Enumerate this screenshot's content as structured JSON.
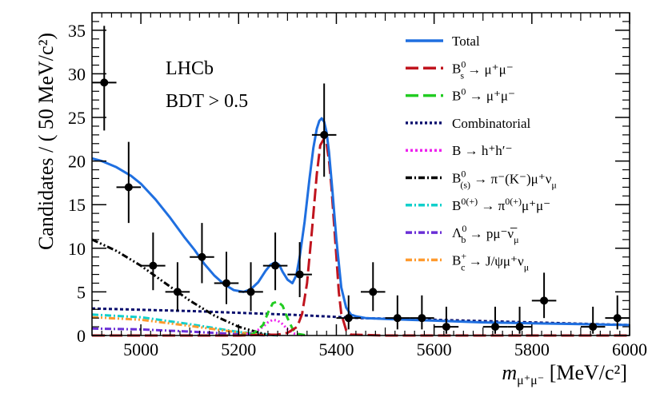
{
  "chart_data": {
    "type": "scatter",
    "title": "",
    "xlabel": "m_{μ⁺μ⁻} [MeV/c²]",
    "xlabel_main": "m",
    "xlabel_sub": "μ⁺μ⁻",
    "xlabel_unit": " [MeV/c²]",
    "ylabel": "Candidates / ( 50 MeV/c²)",
    "xlim": [
      4900,
      6000
    ],
    "ylim": [
      0,
      37
    ],
    "xticks": [
      5000,
      5200,
      5400,
      5600,
      5800,
      6000
    ],
    "yticks": [
      0,
      5,
      10,
      15,
      20,
      25,
      30,
      35
    ],
    "annotations": [
      "LHCb",
      "BDT > 0.5"
    ],
    "data_points": [
      {
        "x": 4925,
        "y": 29,
        "ylo": 23.5,
        "yhi": 35.5
      },
      {
        "x": 4975,
        "y": 17,
        "ylo": 12.9,
        "yhi": 22.2
      },
      {
        "x": 5025,
        "y": 8,
        "ylo": 5.2,
        "yhi": 11.8
      },
      {
        "x": 5075,
        "y": 5,
        "ylo": 2.8,
        "yhi": 8.4
      },
      {
        "x": 5125,
        "y": 9,
        "ylo": 6.0,
        "yhi": 12.9
      },
      {
        "x": 5175,
        "y": 6,
        "ylo": 3.6,
        "yhi": 9.6
      },
      {
        "x": 5225,
        "y": 5,
        "ylo": 2.8,
        "yhi": 8.4
      },
      {
        "x": 5275,
        "y": 8,
        "ylo": 5.2,
        "yhi": 11.8
      },
      {
        "x": 5325,
        "y": 7,
        "ylo": 4.4,
        "yhi": 10.7
      },
      {
        "x": 5375,
        "y": 23,
        "ylo": 18.2,
        "yhi": 28.9
      },
      {
        "x": 5425,
        "y": 2,
        "ylo": 0.7,
        "yhi": 4.6
      },
      {
        "x": 5475,
        "y": 5,
        "ylo": 2.8,
        "yhi": 8.4
      },
      {
        "x": 5525,
        "y": 2,
        "ylo": 0.7,
        "yhi": 4.6
      },
      {
        "x": 5575,
        "y": 2,
        "ylo": 0.7,
        "yhi": 4.6
      },
      {
        "x": 5625,
        "y": 1,
        "ylo": 0.2,
        "yhi": 3.3
      },
      {
        "x": 5725,
        "y": 1,
        "ylo": 0.2,
        "yhi": 3.3
      },
      {
        "x": 5775,
        "y": 1,
        "ylo": 0.2,
        "yhi": 3.3
      },
      {
        "x": 5825,
        "y": 4,
        "ylo": 2.0,
        "yhi": 7.2
      },
      {
        "x": 5925,
        "y": 1,
        "ylo": 0.2,
        "yhi": 3.3
      },
      {
        "x": 5975,
        "y": 2,
        "ylo": 0.7,
        "yhi": 4.6
      }
    ],
    "x_bin_half_width": 25,
    "series": [
      {
        "name": "Total",
        "color": "#1f6fe0",
        "dash": "",
        "width": 3,
        "x": [
          4900,
          4920,
          4950,
          4980,
          5000,
          5030,
          5060,
          5090,
          5110,
          5130,
          5150,
          5170,
          5190,
          5210,
          5225,
          5240,
          5255,
          5265,
          5275,
          5283,
          5290,
          5300,
          5310,
          5318,
          5325,
          5335,
          5345,
          5353,
          5360,
          5365,
          5370,
          5375,
          5380,
          5385,
          5392,
          5400,
          5410,
          5420,
          5430,
          5440,
          5460,
          5500,
          5600,
          5700,
          5800,
          5900,
          6000
        ],
        "y": [
          20.3,
          20.0,
          19.3,
          18.3,
          17.4,
          15.6,
          13.5,
          11.2,
          9.8,
          8.2,
          6.9,
          5.9,
          5.2,
          5.0,
          5.3,
          6.1,
          7.4,
          8.1,
          8.4,
          8.1,
          7.3,
          6.4,
          6.0,
          6.9,
          9.0,
          13.0,
          18.0,
          21.5,
          23.7,
          24.6,
          24.9,
          24.5,
          23.3,
          21.0,
          16.5,
          11.0,
          5.5,
          3.2,
          2.4,
          2.2,
          2.0,
          1.9,
          1.7,
          1.5,
          1.4,
          1.3,
          1.2
        ]
      },
      {
        "name": "B_s^0 → μ⁺μ⁻",
        "color": "#c0141e",
        "dash": "16,6",
        "width": 3,
        "x": [
          4900,
          5200,
          5280,
          5300,
          5320,
          5330,
          5340,
          5350,
          5360,
          5367,
          5375,
          5380,
          5385,
          5390,
          5395,
          5400,
          5405,
          5410,
          5420,
          5430,
          5500,
          6000
        ],
        "y": [
          0,
          0,
          0.1,
          0.3,
          1.0,
          2.5,
          6.0,
          12.0,
          18.5,
          21.8,
          22.6,
          22.0,
          20.0,
          17.0,
          13.0,
          9.0,
          5.0,
          2.5,
          0.6,
          0.1,
          0,
          0
        ]
      },
      {
        "name": "B^0 → μ⁺μ⁻",
        "color": "#22cc22",
        "dash": "9,6",
        "width": 3,
        "x": [
          5200,
          5230,
          5250,
          5260,
          5270,
          5280,
          5290,
          5300,
          5310,
          5320,
          5340
        ],
        "y": [
          0,
          0.2,
          1.2,
          2.6,
          3.7,
          3.9,
          3.4,
          2.0,
          0.8,
          0.2,
          0
        ]
      },
      {
        "name": "Combinatorial",
        "color": "#0a0f6e",
        "dash": "4,3",
        "width": 3,
        "x": [
          4900,
          5100,
          5300,
          5450,
          5600,
          5800,
          6000
        ],
        "y": [
          3.1,
          2.8,
          2.4,
          2.0,
          1.8,
          1.5,
          1.2
        ]
      },
      {
        "name": "B → h⁺hʹ⁻",
        "color": "#ee22ee",
        "dash": "2,3",
        "width": 3,
        "x": [
          5200,
          5230,
          5250,
          5260,
          5270,
          5280,
          5290,
          5300,
          5315,
          5330
        ],
        "y": [
          0,
          0.3,
          1.0,
          1.5,
          1.8,
          1.7,
          1.3,
          0.7,
          0.2,
          0
        ]
      },
      {
        "name": "B^0_(s) → π⁻(K⁻)μ⁺ν_μ",
        "color": "#000000",
        "dash": "8,3,2,3,2,3",
        "width": 3,
        "x": [
          4900,
          4950,
          5000,
          5050,
          5100,
          5150,
          5200,
          5250,
          5280
        ],
        "y": [
          11.0,
          9.7,
          8.0,
          6.0,
          4.0,
          2.3,
          1.0,
          0.2,
          0
        ]
      },
      {
        "name": "B^0(+) → π^0(+)μ⁺μ⁻",
        "color": "#11d0cc",
        "dash": "8,3,2,3",
        "width": 3,
        "x": [
          4900,
          5000,
          5100,
          5200,
          5280
        ],
        "y": [
          2.4,
          2.1,
          1.3,
          0.4,
          0
        ]
      },
      {
        "name": "Λ_b^0 → pμ⁻ν̅_μ",
        "color": "#6a2fd6",
        "dash": "8,3,2,3",
        "width": 3,
        "x": [
          4900,
          5000,
          5100,
          5200,
          5260
        ],
        "y": [
          0.8,
          0.7,
          0.45,
          0.15,
          0
        ]
      },
      {
        "name": "B_c^+ → J/ψμ⁺ν_μ",
        "color": "#ff9a2e",
        "dash": "8,3,2,3,2,3",
        "width": 3,
        "x": [
          4900,
          5000,
          5100,
          5200,
          5260
        ],
        "y": [
          2.1,
          1.8,
          1.1,
          0.35,
          0
        ]
      }
    ]
  },
  "legend": [
    {
      "key": "total",
      "style": "solid",
      "color": "#1f6fe0",
      "parts": [
        [
          "Total",
          ""
        ]
      ]
    },
    {
      "key": "bs",
      "style": "dash",
      "color": "#c0141e",
      "parts": [
        [
          "B",
          "base"
        ],
        [
          "0",
          "sup"
        ],
        [
          "s",
          "sub"
        ],
        [
          " → μ⁺μ⁻",
          "base"
        ]
      ]
    },
    {
      "key": "b0",
      "style": "dash",
      "color": "#22cc22",
      "parts": [
        [
          "B",
          "base"
        ],
        [
          "0",
          "sup"
        ],
        [
          " → μ⁺μ⁻",
          "base"
        ]
      ]
    },
    {
      "key": "comb",
      "style": "dot",
      "color": "#0a0f6e",
      "parts": [
        [
          "Combinatorial",
          "base"
        ]
      ]
    },
    {
      "key": "bhh",
      "style": "dot",
      "color": "#ee22ee",
      "parts": [
        [
          "B → h⁺hʹ⁻",
          "base"
        ]
      ]
    },
    {
      "key": "bpimunu",
      "style": "dashdot",
      "color": "#000000",
      "parts": [
        [
          "B",
          "base"
        ],
        [
          "0",
          "sup"
        ],
        [
          "(s)",
          "sub"
        ],
        [
          " → π⁻(K⁻)μ⁺ν",
          "base"
        ],
        [
          "μ",
          "sub"
        ]
      ]
    },
    {
      "key": "bpimumu",
      "style": "dashdot",
      "color": "#11d0cc",
      "parts": [
        [
          "B",
          "base"
        ],
        [
          "0(+)",
          "sup"
        ],
        [
          " → π",
          "base"
        ],
        [
          "0(+)",
          "sup"
        ],
        [
          "μ⁺μ⁻",
          "base"
        ]
      ]
    },
    {
      "key": "lambdab",
      "style": "dashdot",
      "color": "#6a2fd6",
      "parts": [
        [
          "Λ",
          "base"
        ],
        [
          "0",
          "sup"
        ],
        [
          "b",
          "sub"
        ],
        [
          " → pμ⁻ν̅",
          "base"
        ],
        [
          "μ",
          "sub"
        ]
      ]
    },
    {
      "key": "bc",
      "style": "dashdot",
      "color": "#ff9a2e",
      "parts": [
        [
          "B",
          "base"
        ],
        [
          "+",
          "sup"
        ],
        [
          "c",
          "sub"
        ],
        [
          " → J/ψμ⁺ν",
          "base"
        ],
        [
          "μ",
          "sub"
        ]
      ]
    }
  ]
}
